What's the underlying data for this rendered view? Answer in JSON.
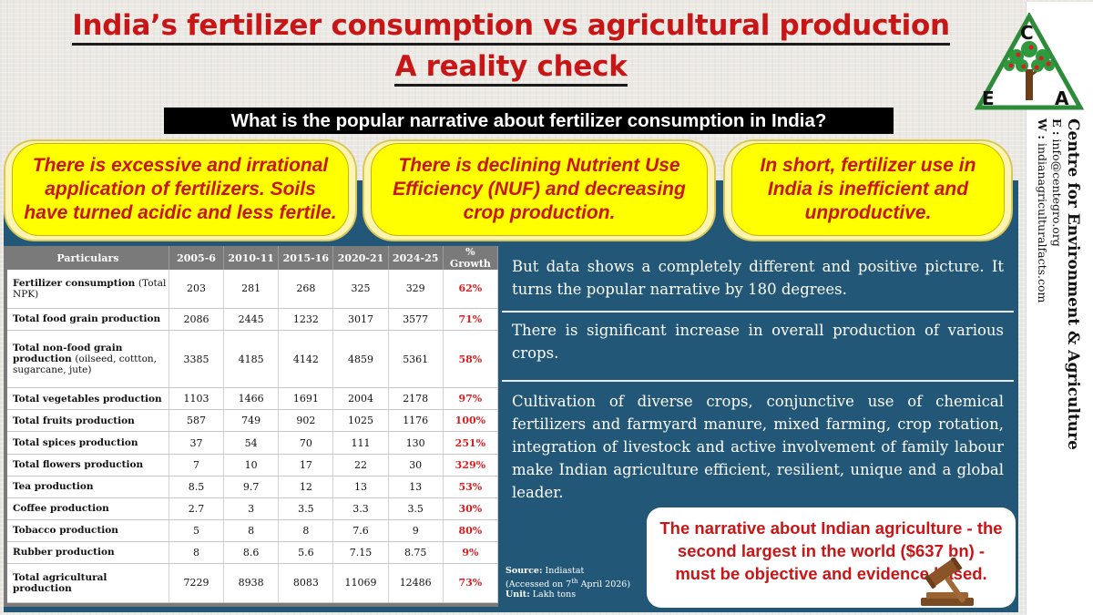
{
  "title": {
    "line1": "India’s fertilizer consumption vs agricultural production",
    "line2": "A reality check"
  },
  "question": "What is the popular narrative about fertilizer consumption in India?",
  "narratives": [
    "There is excessive and irrational application of fertilizers. Soils have turned acidic and less fertile.",
    "There is declining Nutrient Use Efficiency (NUF) and decreasing crop production.",
    "In short, fertilizer use in India is inefficient and unproductive."
  ],
  "table": {
    "headers": [
      "Particulars",
      "2005-6",
      "2010-11",
      "2015-16",
      "2020-21",
      "2024-25",
      "% Growth"
    ],
    "rows": [
      {
        "label": "Fertilizer consumption",
        "sub": "(Total NPK)",
        "values": [
          "203",
          "281",
          "268",
          "325",
          "329"
        ],
        "growth": "62%"
      },
      {
        "label": "Total food grain production",
        "sub": "",
        "values": [
          "2086",
          "2445",
          "1232",
          "3017",
          "3577"
        ],
        "growth": "71%"
      },
      {
        "label": "Total non-food grain production",
        "sub": "(oilseed, cottton, sugarcane, jute)",
        "values": [
          "3385",
          "4185",
          "4142",
          "4859",
          "5361"
        ],
        "growth": "58%"
      },
      {
        "label": "Total vegetables production",
        "sub": "",
        "values": [
          "1103",
          "1466",
          "1691",
          "2004",
          "2178"
        ],
        "growth": "97%"
      },
      {
        "label": "Total fruits production",
        "sub": "",
        "values": [
          "587",
          "749",
          "902",
          "1025",
          "1176"
        ],
        "growth": "100%"
      },
      {
        "label": "Total spices production",
        "sub": "",
        "values": [
          "37",
          "54",
          "70",
          "111",
          "130"
        ],
        "growth": "251%"
      },
      {
        "label": "Total flowers production",
        "sub": "",
        "values": [
          "7",
          "10",
          "17",
          "22",
          "30"
        ],
        "growth": "329%"
      },
      {
        "label": "Tea production",
        "sub": "",
        "values": [
          "8.5",
          "9.7",
          "12",
          "13",
          "13"
        ],
        "growth": "53%"
      },
      {
        "label": "Coffee production",
        "sub": "",
        "values": [
          "2.7",
          "3",
          "3.5",
          "3.3",
          "3.5"
        ],
        "growth": "30%"
      },
      {
        "label": "Tobacco production",
        "sub": "",
        "values": [
          "5",
          "8",
          "8",
          "7.6",
          "9"
        ],
        "growth": "80%"
      },
      {
        "label": "Rubber production",
        "sub": "",
        "values": [
          "8",
          "8.6",
          "5.6",
          "7.15",
          "8.75"
        ],
        "growth": "9%"
      },
      {
        "label": "Total agricultural production",
        "sub": "",
        "values": [
          "7229",
          "8938",
          "8083",
          "11069",
          "12486"
        ],
        "growth": "73%"
      }
    ]
  },
  "info": [
    "But data shows a completely different and positive picture. It turns the popular narrative by 180 degrees.",
    "There is significant increase in overall production of various crops.",
    "Cultivation of diverse crops, conjunctive use of chemical fertilizers and farmyard manure, mixed farming, crop rotation, integration of livestock and active involvement of family labour make Indian agriculture efficient, resilient, unique and a global leader."
  ],
  "source": {
    "label": "Source:",
    "name": "Indiastat",
    "accessed_pre": "(Accessed on 7",
    "accessed_sup": "th",
    "accessed_post": " April 2026)",
    "unit_label": "Unit:",
    "unit": "Lakh tons"
  },
  "conclusion": "The narrative about Indian agriculture - the second largest in the world ($637 bn) - must be objective and evidence based.",
  "org": {
    "name": "Centre for Environment & Agriculture",
    "email_label": "E :",
    "email": "info@centegro.org",
    "web_label": "W :",
    "web": "indianagriculturalfacts.com",
    "logo_letters": [
      "C",
      "E",
      "A"
    ]
  },
  "colors": {
    "title_red": "#c81616",
    "panel_blue": "#225778",
    "bubble_yellow": "#ffff00",
    "growth_red": "#d42020"
  },
  "icons": [
    "gavel-icon",
    "tree-logo-icon"
  ]
}
